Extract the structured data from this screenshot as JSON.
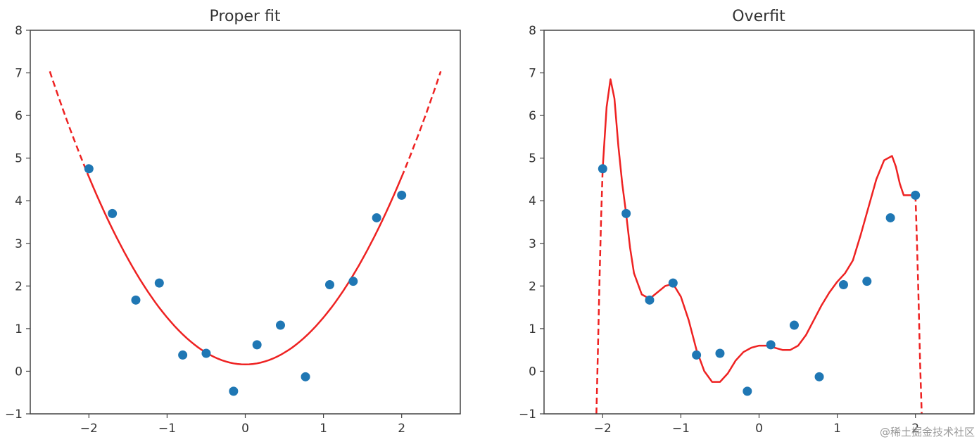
{
  "chart_data": [
    {
      "type": "scatter",
      "title": "Proper fit",
      "xlabel": "",
      "ylabel": "",
      "xlim": [
        -2.75,
        2.75
      ],
      "ylim": [
        -1,
        8
      ],
      "xticks": [
        -2,
        -1,
        0,
        1,
        2
      ],
      "xtick_labels": [
        "−2",
        "−1",
        "0",
        "1",
        "2"
      ],
      "yticks": [
        -1,
        0,
        1,
        2,
        3,
        4,
        5,
        6,
        7,
        8
      ],
      "ytick_labels": [
        "−1",
        "0",
        "1",
        "2",
        "3",
        "4",
        "5",
        "6",
        "7",
        "8"
      ],
      "grid": false,
      "series": [
        {
          "kind": "points",
          "color": "#1f77b4",
          "x": [
            -2.0,
            -1.7,
            -1.4,
            -1.1,
            -0.8,
            -0.5,
            -0.15,
            0.15,
            0.45,
            0.77,
            1.08,
            1.38,
            1.68,
            2.0
          ],
          "y": [
            4.75,
            3.7,
            1.67,
            2.07,
            0.38,
            0.42,
            -0.47,
            0.62,
            1.08,
            -0.13,
            2.03,
            2.11,
            3.6,
            4.13
          ]
        },
        {
          "kind": "curve",
          "color": "#ee2222",
          "model": "quadratic",
          "coefficients": [
            0.16,
            0.0,
            1.1
          ],
          "solid_range": [
            -2.0,
            2.0
          ],
          "dashed_range": [
            -2.5,
            2.5
          ]
        }
      ]
    },
    {
      "type": "scatter",
      "title": "Overfit",
      "xlabel": "",
      "ylabel": "",
      "xlim": [
        -2.75,
        2.75
      ],
      "ylim": [
        -1,
        8
      ],
      "xticks": [
        -2,
        -1,
        0,
        1,
        2
      ],
      "xtick_labels": [
        "−2",
        "−1",
        "0",
        "1",
        "2"
      ],
      "yticks": [
        -1,
        0,
        1,
        2,
        3,
        4,
        5,
        6,
        7,
        8
      ],
      "ytick_labels": [
        "−1",
        "0",
        "1",
        "2",
        "3",
        "4",
        "5",
        "6",
        "7",
        "8"
      ],
      "grid": false,
      "series": [
        {
          "kind": "points",
          "color": "#1f77b4",
          "x": [
            -2.0,
            -1.7,
            -1.4,
            -1.1,
            -0.8,
            -0.5,
            -0.15,
            0.15,
            0.45,
            0.77,
            1.08,
            1.38,
            1.68,
            2.0
          ],
          "y": [
            4.75,
            3.7,
            1.67,
            2.07,
            0.38,
            0.42,
            -0.47,
            0.62,
            1.08,
            -0.13,
            2.03,
            2.11,
            3.6,
            4.13
          ]
        },
        {
          "kind": "curve",
          "color": "#ee2222",
          "model": "interpolated",
          "solid": {
            "x": [
              -2.0,
              -1.95,
              -1.9,
              -1.85,
              -1.8,
              -1.75,
              -1.7,
              -1.65,
              -1.6,
              -1.5,
              -1.4,
              -1.3,
              -1.2,
              -1.1,
              -1.0,
              -0.9,
              -0.8,
              -0.7,
              -0.6,
              -0.5,
              -0.4,
              -0.3,
              -0.2,
              -0.1,
              0.0,
              0.1,
              0.2,
              0.3,
              0.4,
              0.5,
              0.6,
              0.7,
              0.8,
              0.9,
              1.0,
              1.1,
              1.2,
              1.3,
              1.4,
              1.5,
              1.6,
              1.7,
              1.75,
              1.8,
              1.85,
              1.9,
              1.93,
              1.96,
              2.0
            ],
            "y": [
              4.75,
              6.2,
              6.85,
              6.4,
              5.3,
              4.4,
              3.7,
              2.9,
              2.3,
              1.8,
              1.7,
              1.85,
              2.0,
              2.05,
              1.75,
              1.2,
              0.5,
              0.0,
              -0.25,
              -0.25,
              -0.05,
              0.25,
              0.45,
              0.55,
              0.6,
              0.6,
              0.55,
              0.5,
              0.5,
              0.6,
              0.85,
              1.2,
              1.55,
              1.85,
              2.1,
              2.3,
              2.6,
              3.2,
              3.85,
              4.5,
              4.95,
              5.05,
              4.8,
              4.4,
              4.13,
              4.13,
              4.13,
              4.13,
              4.13
            ]
          },
          "dashed_left": {
            "x": [
              -2.08,
              -2.06,
              -2.04,
              -2.02,
              -2.0
            ],
            "y": [
              -1.0,
              0.6,
              2.2,
              3.6,
              4.75
            ]
          },
          "dashed_right": {
            "x": [
              2.0,
              2.02,
              2.04,
              2.06,
              2.08
            ],
            "y": [
              4.13,
              3.0,
              1.7,
              0.2,
              -1.0
            ]
          }
        }
      ]
    }
  ],
  "watermark": "@稀土掘金技术社区"
}
